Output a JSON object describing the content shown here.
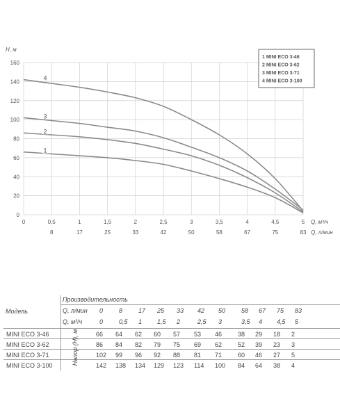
{
  "chart_data": {
    "type": "line",
    "title": "",
    "ylabel": "H, м",
    "xlabel_primary": "Q, м³/ч",
    "xlabel_secondary": "Q, л/мин",
    "ylim": [
      0,
      160
    ],
    "xlim": [
      0,
      5
    ],
    "y_ticks": [
      "0",
      "20",
      "40",
      "60",
      "80",
      "100",
      "120",
      "140",
      "160"
    ],
    "x_ticks_primary": [
      "0",
      "0,5",
      "1",
      "1,5",
      "2",
      "2,5",
      "3",
      "3,5",
      "4",
      "4,5",
      "5"
    ],
    "x_ticks_secondary": [
      "8",
      "17",
      "25",
      "33",
      "42",
      "50",
      "58",
      "67",
      "75",
      "83"
    ],
    "grid": true,
    "legend_position": "top-right",
    "legend": [
      "1  MINI ECO 3-46",
      "2  MINI ECO 3-62",
      "3  MINI ECO 3-71",
      "4  MINI ECO 3-100"
    ],
    "curve_labels": [
      "1",
      "2",
      "3",
      "4"
    ],
    "x": [
      0,
      0.5,
      1,
      1.5,
      2,
      2.5,
      3,
      3.5,
      4,
      4.5,
      5
    ],
    "series": [
      {
        "name": "MINI ECO 3-46",
        "values": [
          66,
          64,
          62,
          60,
          57,
          53,
          46,
          38,
          29,
          18,
          2
        ]
      },
      {
        "name": "MINI ECO 3-62",
        "values": [
          86,
          84,
          82,
          79,
          75,
          69,
          62,
          52,
          39,
          23,
          3
        ]
      },
      {
        "name": "MINI ECO 3-71",
        "values": [
          102,
          99,
          96,
          92,
          88,
          81,
          71,
          60,
          46,
          27,
          5
        ]
      },
      {
        "name": "MINI ECO 3-100",
        "values": [
          142,
          138,
          134,
          129,
          123,
          114,
          100,
          84,
          64,
          38,
          4
        ]
      }
    ],
    "line_color": "#8a8a8a",
    "grid_color": "#d0d0d0"
  },
  "table": {
    "model_header": "Модель",
    "perf_header": "Производительность",
    "head_label": "Напор (H), м",
    "row1_label": "Q, л/мин",
    "row2_label": "Q, м³/ч",
    "lpm": [
      "0",
      "8",
      "17",
      "25",
      "33",
      "42",
      "50",
      "58",
      "67",
      "75",
      "83"
    ],
    "m3h": [
      "0",
      "0,5",
      "1",
      "1,5",
      "2",
      "2,5",
      "3",
      "3,5",
      "4",
      "4,5",
      "5"
    ],
    "rows": [
      {
        "model": "MINI ECO 3-46",
        "values": [
          "66",
          "64",
          "62",
          "60",
          "57",
          "53",
          "46",
          "38",
          "29",
          "18",
          "2"
        ]
      },
      {
        "model": "MINI ECO 3-62",
        "values": [
          "86",
          "84",
          "82",
          "79",
          "75",
          "69",
          "62",
          "52",
          "39",
          "23",
          "3"
        ]
      },
      {
        "model": "MINI ECO 3-71",
        "values": [
          "102",
          "99",
          "96",
          "92",
          "88",
          "81",
          "71",
          "60",
          "46",
          "27",
          "5"
        ]
      },
      {
        "model": "MINI ECO 3-100",
        "values": [
          "142",
          "138",
          "134",
          "129",
          "123",
          "114",
          "100",
          "84",
          "64",
          "38",
          "4"
        ]
      }
    ]
  }
}
